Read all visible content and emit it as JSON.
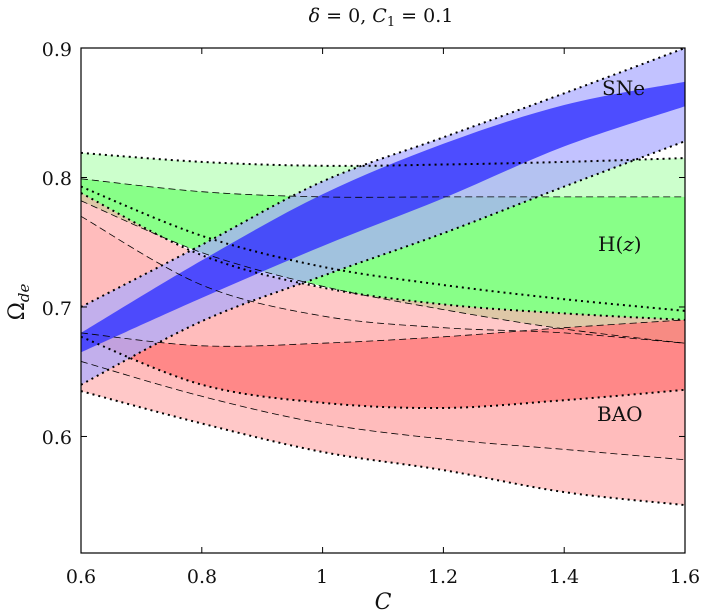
{
  "chart_data": {
    "type": "area",
    "title": {
      "symbol1": "δ",
      "eq1": " = 0, ",
      "symbol2": "C",
      "sub2": "1",
      "eq2": " = 0.1"
    },
    "xlabel": "C",
    "ylabel": {
      "base": "Ω",
      "sub": "de"
    },
    "xlim": [
      0.6,
      1.6
    ],
    "ylim": [
      0.51,
      0.9
    ],
    "xticks": [
      "0.6",
      "0.8",
      "1",
      "1.2",
      "1.4",
      "1.6"
    ],
    "yticks": [
      "0.6",
      "0.7",
      "0.8",
      "0.9"
    ],
    "region_labels": {
      "sne": "SNe",
      "hz_open": "H(",
      "hz_var": "z",
      "hz_close": ")",
      "bao": "BAO"
    },
    "colors": {
      "sne_outer": "#aaaaff",
      "sne_inner": "#3333ff",
      "hz_outer": "#ccffcc",
      "hz_inner": "#88ff88",
      "bao_outer": "#ffb3b3",
      "bao_inner": "#ff7777"
    },
    "series": [
      {
        "name": "H(z) 2-sigma",
        "x": [
          0.6,
          0.8,
          1.0,
          1.2,
          1.4,
          1.6
        ],
        "upper": [
          0.819,
          0.812,
          0.809,
          0.81,
          0.812,
          0.815
        ],
        "lower": [
          0.793,
          0.755,
          0.731,
          0.717,
          0.706,
          0.697
        ]
      },
      {
        "name": "H(z) 1-sigma",
        "x": [
          0.6,
          0.8,
          1.0,
          1.2,
          1.4,
          1.6
        ],
        "upper": [
          0.799,
          0.789,
          0.785,
          0.785,
          0.785,
          0.785
        ],
        "lower": [
          0.782,
          0.742,
          0.716,
          0.698,
          0.683,
          0.672
        ]
      },
      {
        "name": "BAO 2-sigma",
        "x": [
          0.6,
          0.8,
          1.0,
          1.2,
          1.4,
          1.6
        ],
        "upper": [
          0.788,
          0.74,
          0.715,
          0.702,
          0.695,
          0.69
        ],
        "lower": [
          0.635,
          0.61,
          0.588,
          0.574,
          0.557,
          0.547
        ]
      },
      {
        "name": "BAO 1-sigma",
        "x": [
          0.6,
          0.8,
          1.0,
          1.2,
          1.4,
          1.6
        ],
        "upper": [
          0.77,
          0.717,
          0.693,
          0.684,
          0.68,
          0.672
        ],
        "lower": [
          0.658,
          0.631,
          0.61,
          0.598,
          0.59,
          0.582
        ]
      },
      {
        "name": "BAO 1-sigma (inner)",
        "x": [
          0.6,
          0.8,
          1.0,
          1.2,
          1.4,
          1.6
        ],
        "upper": [
          0.68,
          0.67,
          0.672,
          0.677,
          0.684,
          0.69
        ],
        "lower": [
          0.677,
          0.64,
          0.626,
          0.622,
          0.628,
          0.636
        ]
      },
      {
        "name": "SNe 2-sigma",
        "x": [
          0.6,
          0.8,
          1.0,
          1.2,
          1.4,
          1.6
        ],
        "upper": [
          0.7,
          0.748,
          0.797,
          0.831,
          0.865,
          0.9
        ],
        "lower": [
          0.64,
          0.689,
          0.724,
          0.757,
          0.793,
          0.828
        ]
      },
      {
        "name": "SNe 1-sigma",
        "x": [
          0.6,
          0.8,
          1.0,
          1.2,
          1.4,
          1.6
        ],
        "upper": [
          0.68,
          0.736,
          0.787,
          0.826,
          0.856,
          0.874
        ],
        "lower": [
          0.665,
          0.707,
          0.747,
          0.784,
          0.824,
          0.855
        ]
      }
    ]
  }
}
